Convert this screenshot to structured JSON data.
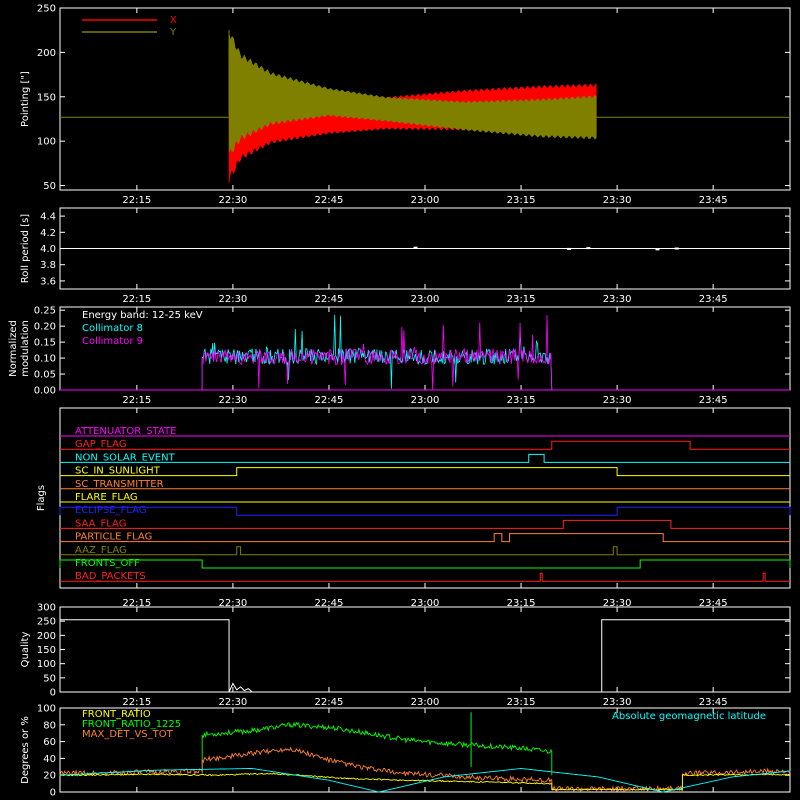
{
  "x_ticks": [
    "22:15",
    "22:30",
    "22:45",
    "23:00",
    "23:15",
    "23:30",
    "23:45"
  ],
  "chart_data": [
    {
      "type": "area",
      "ylabel": "Pointing [\"]",
      "ylim": [
        45,
        250
      ],
      "yticks": [
        50,
        100,
        150,
        200,
        250
      ],
      "legend": [
        {
          "label": "X",
          "color": "#ff0000"
        },
        {
          "label": "Y",
          "color": "#808000"
        }
      ],
      "baseline": 127,
      "series": [
        {
          "name": "X",
          "color": "#ff0000",
          "upper": [
            [
              22.49,
              205
            ],
            [
              22.52,
              178
            ],
            [
              22.6,
              158
            ],
            [
              22.75,
              148
            ],
            [
              22.9,
              150
            ],
            [
              23.1,
              158
            ],
            [
              23.3,
              163
            ],
            [
              23.45,
              165
            ]
          ],
          "lower": [
            [
              22.49,
              52
            ],
            [
              22.52,
              78
            ],
            [
              22.6,
              97
            ],
            [
              22.75,
              108
            ],
            [
              22.9,
              113
            ],
            [
              23.1,
              112
            ],
            [
              23.3,
              110
            ],
            [
              23.45,
              108
            ]
          ]
        },
        {
          "name": "Y",
          "color": "#808000",
          "upper": [
            [
              22.49,
              228
            ],
            [
              22.52,
              200
            ],
            [
              22.6,
              178
            ],
            [
              22.75,
              160
            ],
            [
              22.9,
              150
            ],
            [
              23.1,
              145
            ],
            [
              23.3,
              148
            ],
            [
              23.45,
              152
            ]
          ],
          "lower": [
            [
              22.49,
              80
            ],
            [
              22.52,
              100
            ],
            [
              22.6,
              118
            ],
            [
              22.75,
              128
            ],
            [
              22.9,
              122
            ],
            [
              23.1,
              112
            ],
            [
              23.3,
              104
            ],
            [
              23.45,
              102
            ]
          ]
        }
      ]
    },
    {
      "type": "line",
      "ylabel": "Roll period [s]",
      "ylim": [
        3.5,
        4.5
      ],
      "yticks": [
        "3.6",
        "3.8",
        "4.0",
        "4.2",
        "4.4"
      ],
      "series": [
        {
          "name": "",
          "color": "#ffffff",
          "points": [
            [
              22.05,
              4.0
            ],
            [
              23.95,
              4.0
            ]
          ]
        }
      ]
    },
    {
      "type": "line",
      "ylabel": "Normalized modulation",
      "ylim": [
        0,
        0.26
      ],
      "yticks": [
        "0.00",
        "0.05",
        "0.10",
        "0.15",
        "0.20",
        "0.25"
      ],
      "legend_title": "Energy band: 12-25 keV",
      "series": [
        {
          "name": "Collimator 8",
          "color": "#00ffff"
        },
        {
          "name": "Collimator 9",
          "color": "#ff00ff"
        }
      ],
      "active_range": [
        22.42,
        23.33
      ],
      "typical_level": 0.1
    },
    {
      "type": "step",
      "ylabel": "Flags",
      "flags": [
        {
          "label": "ATTENUATOR_STATE",
          "color": "#ff00ff",
          "high": []
        },
        {
          "label": "GAP_FLAG",
          "color": "#ff2020",
          "high": [
            [
              23.33,
              23.69
            ]
          ]
        },
        {
          "label": "NON_SOLAR_EVENT",
          "color": "#00ffff",
          "high": [
            [
              23.27,
              23.31
            ]
          ]
        },
        {
          "label": "SC_IN_SUNLIGHT",
          "color": "#ffff00",
          "high": [
            [
              22.51,
              23.5
            ]
          ]
        },
        {
          "label": "SC_TRANSMITTER",
          "color": "#ff8030",
          "high": []
        },
        {
          "label": "FLARE_FLAG",
          "color": "#ffff00",
          "high": []
        },
        {
          "label": "ECLIPSE_FLAG",
          "color": "#2020ff",
          "high": [
            [
              22.05,
              22.51
            ],
            [
              23.5,
              23.95
            ]
          ]
        },
        {
          "label": "SAA_FLAG",
          "color": "#ff2020",
          "high": [
            [
              23.36,
              23.64
            ]
          ]
        },
        {
          "label": "PARTICLE_FLAG",
          "color": "#ff8030",
          "high": [
            [
              23.18,
              23.2
            ],
            [
              23.22,
              23.62
            ]
          ]
        },
        {
          "label": "AAZ_FLAG",
          "color": "#808000",
          "high": [
            [
              22.51,
              22.52
            ],
            [
              23.49,
              23.5
            ]
          ]
        },
        {
          "label": "FRONTS_OFF",
          "color": "#00ff00",
          "high": [
            [
              22.05,
              22.42
            ],
            [
              23.56,
              23.95
            ]
          ]
        },
        {
          "label": "BAD_PACKETS",
          "color": "#ff2020",
          "high": [
            [
              23.3,
              23.305
            ],
            [
              23.88,
              23.885
            ]
          ]
        }
      ]
    },
    {
      "type": "line",
      "ylabel": "Quality",
      "ylim": [
        0,
        300
      ],
      "yticks": [
        0,
        50,
        100,
        150,
        200,
        250,
        300
      ],
      "series": [
        {
          "name": "",
          "color": "#ffffff",
          "points": [
            [
              22.05,
              255
            ],
            [
              22.49,
              255
            ],
            [
              22.49,
              0
            ],
            [
              22.5,
              30
            ],
            [
              22.51,
              8
            ],
            [
              22.52,
              18
            ],
            [
              22.53,
              5
            ],
            [
              22.54,
              12
            ],
            [
              22.55,
              0
            ],
            [
              23.46,
              0
            ],
            [
              23.46,
              255
            ],
            [
              23.95,
              255
            ]
          ]
        }
      ]
    },
    {
      "type": "line",
      "ylabel": "Degrees or %",
      "ylim": [
        0,
        100
      ],
      "yticks": [
        0,
        20,
        40,
        60,
        80,
        100
      ],
      "legend": [
        {
          "label": "FRONT_RATIO",
          "color": "#ffff00"
        },
        {
          "label": "FRONT_RATIO_1225",
          "color": "#00ff00"
        },
        {
          "label": "MAX_DET_VS_TOT",
          "color": "#ff8030"
        }
      ],
      "right_label": {
        "label": "Absolute geomagnetic latitude",
        "color": "#00ffff"
      },
      "series": [
        {
          "name": "FRONT_RATIO_1225",
          "color": "#00ff00",
          "points": [
            [
              22.42,
              22
            ],
            [
              22.42,
              68
            ],
            [
              22.55,
              73
            ],
            [
              22.65,
              80
            ],
            [
              22.75,
              77
            ],
            [
              22.85,
              70
            ],
            [
              22.95,
              62
            ],
            [
              23.05,
              58
            ],
            [
              23.15,
              55
            ],
            [
              23.25,
              52
            ],
            [
              23.33,
              48
            ],
            [
              23.33,
              20
            ]
          ]
        },
        {
          "name": "MAX_DET_VS_TOT",
          "color": "#ff8030",
          "points": [
            [
              22.05,
              22
            ],
            [
              22.2,
              23
            ],
            [
              22.42,
              25
            ],
            [
              22.42,
              38
            ],
            [
              22.55,
              46
            ],
            [
              22.65,
              52
            ],
            [
              22.75,
              38
            ],
            [
              22.85,
              28
            ],
            [
              22.95,
              22
            ],
            [
              23.1,
              18
            ],
            [
              23.25,
              15
            ],
            [
              23.33,
              14
            ],
            [
              23.33,
              4
            ],
            [
              23.67,
              4
            ],
            [
              23.67,
              22
            ],
            [
              23.95,
              25
            ]
          ]
        },
        {
          "name": "FRONT_RATIO",
          "color": "#ffff00",
          "points": [
            [
              22.05,
              20
            ],
            [
              22.3,
              21
            ],
            [
              22.45,
              20
            ],
            [
              22.6,
              22
            ],
            [
              22.7,
              19
            ],
            [
              22.8,
              16
            ],
            [
              22.95,
              14
            ],
            [
              23.15,
              12
            ],
            [
              23.33,
              10
            ],
            [
              23.33,
              3
            ],
            [
              23.67,
              3
            ],
            [
              23.67,
              20
            ],
            [
              23.95,
              21
            ]
          ]
        },
        {
          "name": "Absolute geomagnetic latitude",
          "color": "#00ffff",
          "points": [
            [
              22.05,
              20
            ],
            [
              22.3,
              26
            ],
            [
              22.55,
              28
            ],
            [
              22.75,
              14
            ],
            [
              22.88,
              0
            ],
            [
              23.05,
              18
            ],
            [
              23.25,
              28
            ],
            [
              23.45,
              18
            ],
            [
              23.62,
              0
            ],
            [
              23.8,
              18
            ],
            [
              23.95,
              25
            ]
          ]
        }
      ]
    }
  ]
}
